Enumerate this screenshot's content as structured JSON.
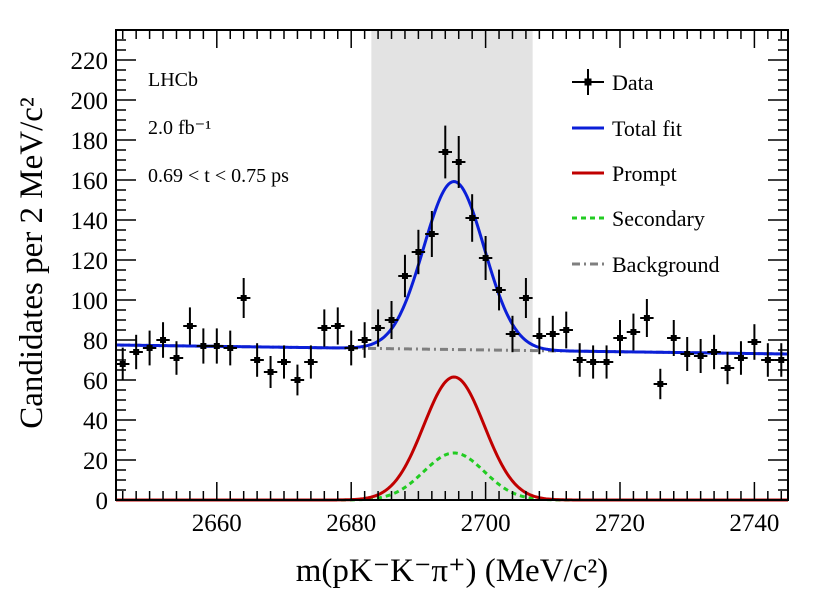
{
  "chart_data": {
    "type": "scatter",
    "title": "",
    "xlabel": "m(pK⁻K⁻π⁺) (MeV/c²)",
    "ylabel": "Candidates per 2 MeV/c²",
    "xlim": [
      2645,
      2745
    ],
    "ylim": [
      0,
      235
    ],
    "x_ticks": [
      2660,
      2680,
      2700,
      2720,
      2740
    ],
    "y_ticks": [
      0,
      20,
      40,
      60,
      80,
      100,
      120,
      140,
      160,
      180,
      200,
      220
    ],
    "x_tick_labels": [
      "2660",
      "2680",
      "2700",
      "2720",
      "2740"
    ],
    "y_tick_labels": [
      "0",
      "20",
      "40",
      "60",
      "80",
      "100",
      "120",
      "140",
      "160",
      "180",
      "200",
      "220"
    ],
    "annotations": {
      "experiment": "LHCb",
      "luminosity": "2.0 fb⁻¹",
      "time_window": "0.69 < t < 0.75 ps"
    },
    "signal_window": [
      2683,
      2707
    ],
    "series": [
      {
        "name": "Data",
        "style": "points-with-errors",
        "color": "#000000",
        "x": [
          2646,
          2648,
          2650,
          2652,
          2654,
          2656,
          2658,
          2660,
          2662,
          2664,
          2666,
          2668,
          2670,
          2672,
          2674,
          2676,
          2678,
          2680,
          2682,
          2684,
          2686,
          2688,
          2690,
          2692,
          2694,
          2696,
          2698,
          2700,
          2702,
          2704,
          2706,
          2708,
          2710,
          2712,
          2714,
          2716,
          2718,
          2720,
          2722,
          2724,
          2726,
          2728,
          2730,
          2732,
          2734,
          2736,
          2738,
          2740,
          2742,
          2744
        ],
        "y": [
          68,
          74,
          76,
          80,
          71,
          87,
          77,
          77,
          76,
          101,
          70,
          64,
          69,
          60,
          69,
          86,
          87,
          76,
          80,
          86,
          90,
          112,
          124,
          133,
          174,
          169,
          141,
          121,
          105,
          83,
          101,
          82,
          83,
          85,
          70,
          69,
          69,
          81,
          84,
          91,
          58,
          81,
          73,
          72,
          74,
          66,
          71,
          79,
          70,
          70
        ],
        "err": [
          8.2,
          8.6,
          8.7,
          8.9,
          8.4,
          9.3,
          8.8,
          8.8,
          8.7,
          10.0,
          8.4,
          8.0,
          8.3,
          7.7,
          8.3,
          9.3,
          9.3,
          8.7,
          8.9,
          9.3,
          9.5,
          10.6,
          11.1,
          11.5,
          13.2,
          13.0,
          11.9,
          11.0,
          10.2,
          9.1,
          10.0,
          9.1,
          9.1,
          9.2,
          8.4,
          8.3,
          8.3,
          9.0,
          9.2,
          9.5,
          7.6,
          9.0,
          8.5,
          8.5,
          8.6,
          8.1,
          8.4,
          8.9,
          8.4,
          8.4
        ]
      },
      {
        "name": "Total fit",
        "style": "line",
        "color": "#0b1fd8",
        "model": {
          "background_at_2645": 77.5,
          "background_slope_per_MeV": -0.045,
          "peak_mean": 2695.3,
          "peak_sigma": 4.5,
          "peak_height": 84
        }
      },
      {
        "name": "Prompt",
        "style": "line",
        "color": "#c00000",
        "model": {
          "peak_mean": 2695.3,
          "peak_sigma": 4.5,
          "peak_height": 61.5
        }
      },
      {
        "name": "Secondary",
        "style": "dashed",
        "color": "#22cc22",
        "model": {
          "peak_mean": 2695.3,
          "peak_sigma": 4.5,
          "peak_height": 23.5
        }
      },
      {
        "name": "Background",
        "style": "dash-dot",
        "color": "#7f7f7f",
        "model": {
          "background_at_2645": 77.5,
          "background_slope_per_MeV": -0.045
        }
      }
    ],
    "legend": {
      "position": "top-right",
      "entries": [
        "Data",
        "Total fit",
        "Prompt",
        "Secondary",
        "Background"
      ]
    },
    "colors": {
      "signal_region": "#e3e3e3"
    }
  }
}
